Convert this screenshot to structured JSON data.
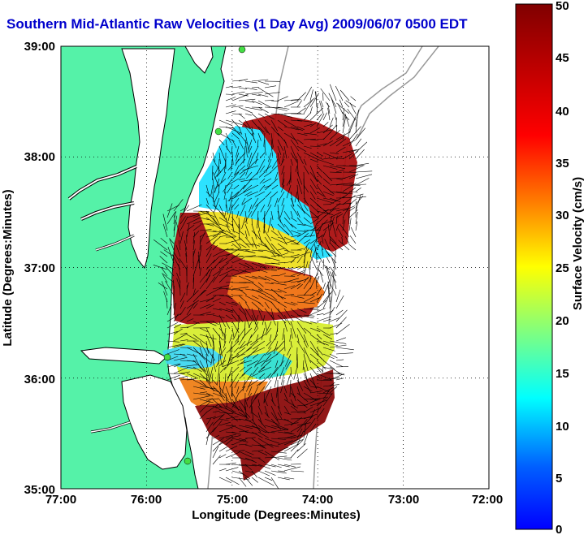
{
  "title": "Southern Mid-Atlantic Raw Velocities (1 Day Avg) 2009/06/07 0500 EDT",
  "map": {
    "xlabel": "Longitude (Degrees:Minutes)",
    "ylabel": "Latitude (Degrees:Minutes)",
    "x_ticks": [
      "77:00",
      "76:00",
      "75:00",
      "74:00",
      "73:00",
      "72:00"
    ],
    "y_ticks": [
      "39:00",
      "38:00",
      "37:00",
      "36:00",
      "35:00"
    ],
    "xlim": [
      -77,
      -72
    ],
    "ylim": [
      35,
      39
    ],
    "grid": "dotted",
    "land_color": "#55f2a8",
    "coastline_color": "#000000",
    "bathymetry_color": "#999999",
    "vector_color": "#000000"
  },
  "colorbar": {
    "label": "Surface Velocity (cm/s)",
    "range": [
      0,
      50
    ],
    "ticks": [
      "0",
      "5",
      "10",
      "15",
      "20",
      "25",
      "30",
      "35",
      "40",
      "45",
      "50"
    ],
    "colormap": "jet",
    "colors": [
      "#0000ff",
      "#00ffff",
      "#ffff00",
      "#ff0000",
      "#800000"
    ]
  }
}
